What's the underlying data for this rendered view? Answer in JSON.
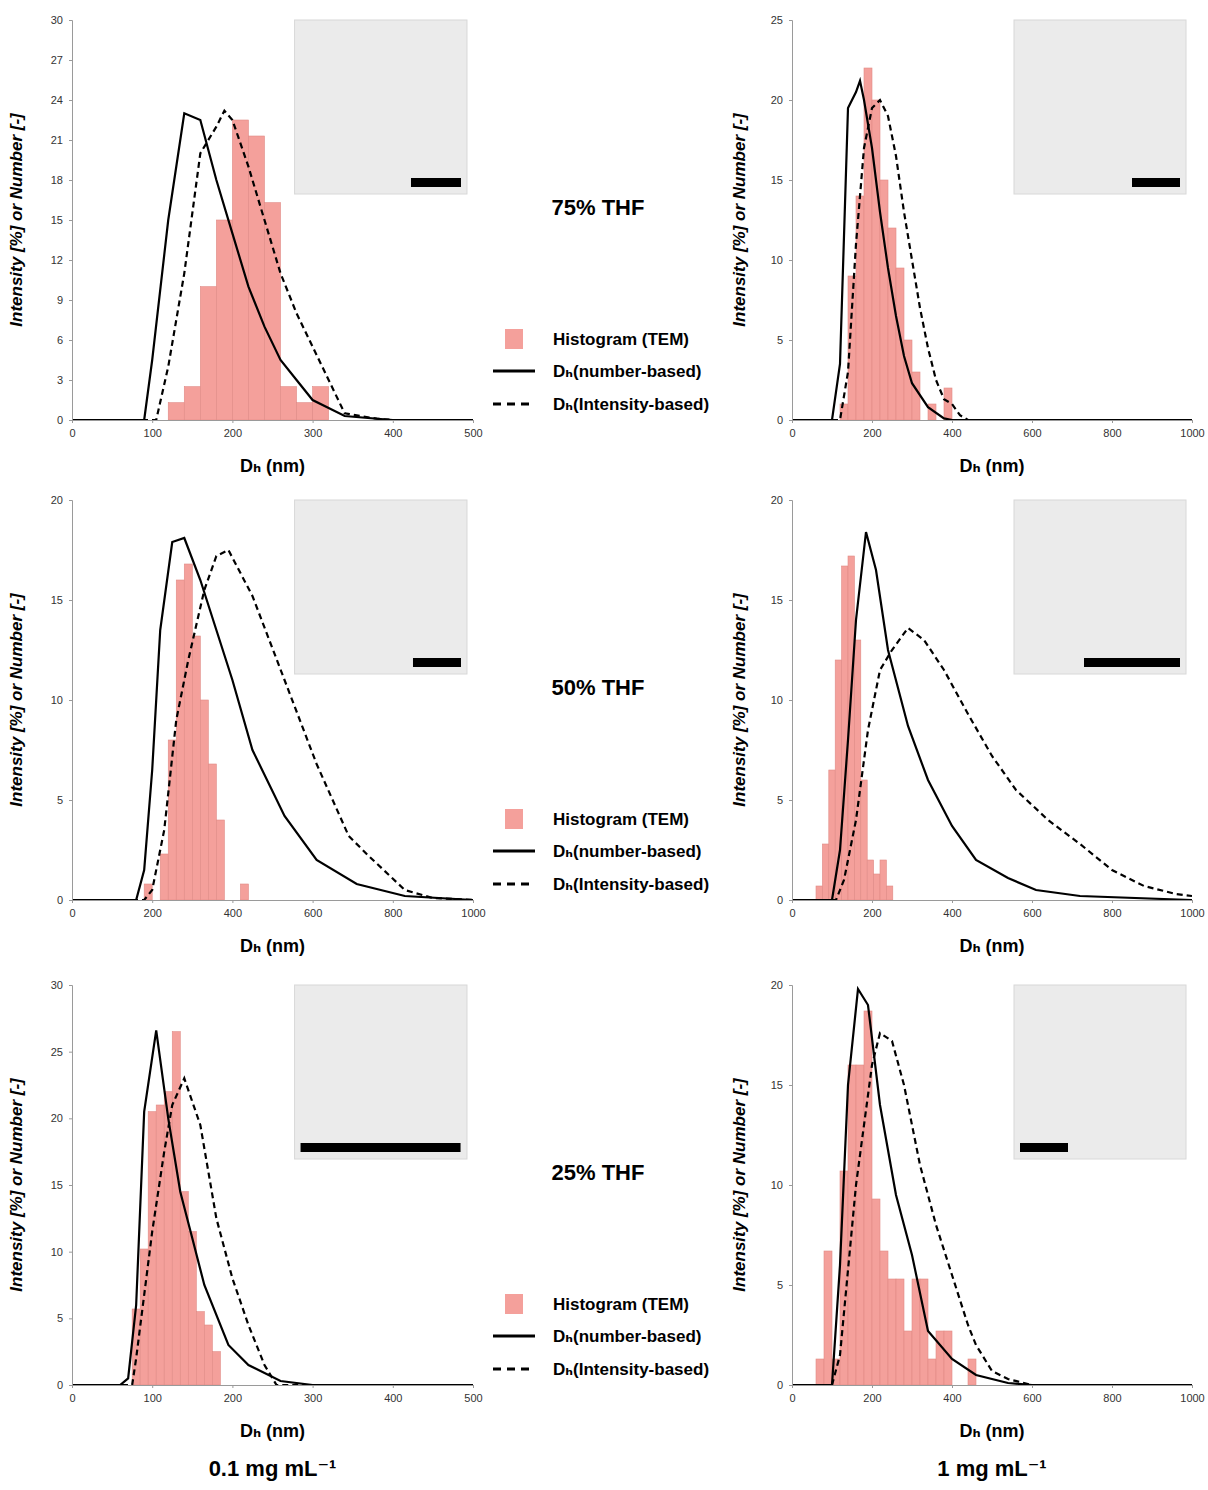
{
  "chart_data": [
    {
      "type": "histogram",
      "x_label": "Dₕ (nm)",
      "y_label": "Intensity [%] or Number [-]",
      "xlim": [
        0,
        500
      ],
      "xticks": [
        0,
        100,
        200,
        300,
        400,
        500
      ],
      "ylim": [
        0,
        30
      ],
      "yticks": [
        0,
        3,
        6,
        9,
        12,
        15,
        18,
        21,
        24,
        27,
        30
      ],
      "legend": "right",
      "series": [
        {
          "name": "Histogram (TEM)",
          "type": "histogram",
          "color": "#f4a09b",
          "bins": [
            120,
            140,
            160,
            180,
            200,
            220,
            240,
            260,
            280,
            300,
            320
          ],
          "values": [
            1.3,
            2.5,
            10,
            15,
            22.5,
            21.3,
            16.3,
            2.5,
            1.3,
            2.5
          ]
        },
        {
          "name": "Dₕ(number-based)",
          "type": "line",
          "line_style": "solid",
          "color": "#000000",
          "x": [
            0,
            90,
            100,
            120,
            140,
            160,
            180,
            200,
            220,
            240,
            260,
            280,
            300,
            340,
            400,
            500
          ],
          "values": [
            0,
            0,
            4.5,
            15,
            23,
            22.5,
            18,
            14,
            10,
            7,
            4.5,
            3,
            1.5,
            0.3,
            0,
            0
          ]
        },
        {
          "name": "Dₕ(Intensity-based)",
          "type": "line",
          "line_style": "dashed",
          "color": "#000000",
          "x": [
            0,
            105,
            120,
            140,
            160,
            180,
            190,
            200,
            220,
            240,
            260,
            280,
            300,
            320,
            340,
            380,
            400,
            500
          ],
          "values": [
            0,
            0,
            4,
            11,
            20,
            22,
            23.2,
            22.5,
            19,
            15,
            11,
            8,
            5.5,
            3,
            0.5,
            0.1,
            0,
            0
          ]
        }
      ]
    },
    {
      "type": "histogram",
      "x_label": "Dₕ (nm)",
      "y_label": "Intensity [%] or Number [-]",
      "xlim": [
        0,
        1000
      ],
      "xticks": [
        0,
        200,
        400,
        600,
        800,
        1000
      ],
      "ylim": [
        0,
        25
      ],
      "yticks": [
        0,
        5,
        10,
        15,
        20,
        25
      ],
      "series": [
        {
          "type": "histogram",
          "color": "#f4a09b",
          "bins": [
            120,
            140,
            160,
            180,
            200,
            220,
            240,
            260,
            280,
            300,
            320,
            340,
            360,
            380,
            400
          ],
          "values": [
            1,
            9,
            14,
            22,
            20,
            15,
            12,
            9.5,
            5,
            3,
            0,
            1,
            0,
            2
          ]
        },
        {
          "type": "line",
          "line_style": "solid",
          "color": "#000000",
          "x": [
            0,
            100,
            120,
            140,
            160,
            170,
            180,
            200,
            220,
            240,
            260,
            280,
            300,
            340,
            380,
            400,
            1000
          ],
          "values": [
            0,
            0,
            3.5,
            19.5,
            20.5,
            21.2,
            20,
            17,
            13,
            9.5,
            6.5,
            4,
            2.3,
            0.8,
            0.1,
            0,
            0
          ]
        },
        {
          "type": "line",
          "line_style": "dashed",
          "color": "#000000",
          "x": [
            0,
            120,
            140,
            160,
            180,
            200,
            220,
            240,
            260,
            280,
            300,
            320,
            340,
            360,
            380,
            400,
            420,
            440,
            1000
          ],
          "values": [
            0,
            0,
            3,
            11,
            17,
            19.5,
            20,
            19,
            16.5,
            13,
            10,
            7,
            4.5,
            2.5,
            1.3,
            1,
            0.3,
            0,
            0
          ]
        }
      ]
    },
    {
      "type": "histogram",
      "x_label": "Dₕ (nm)",
      "y_label": "Intensity [%] or Number [-]",
      "xlim": [
        0,
        1000
      ],
      "xticks": [
        0,
        200,
        400,
        600,
        800,
        1000
      ],
      "ylim": [
        0,
        20
      ],
      "yticks": [
        0,
        5,
        10,
        15,
        20
      ],
      "legend": "right",
      "series": [
        {
          "name": "Histogram (TEM)",
          "type": "histogram",
          "color": "#f4a09b",
          "bins": [
            180,
            200,
            220,
            240,
            260,
            280,
            300,
            320,
            340,
            360,
            380,
            400,
            420,
            440
          ],
          "values": [
            0.8,
            0,
            2.3,
            8,
            16,
            16.8,
            13.2,
            10,
            6.8,
            4,
            0,
            0,
            0.8
          ]
        },
        {
          "name": "Dₕ(number-based)",
          "type": "line",
          "line_style": "solid",
          "color": "#000000",
          "x": [
            0,
            160,
            180,
            200,
            220,
            250,
            280,
            320,
            360,
            400,
            450,
            530,
            610,
            710,
            830,
            1000
          ],
          "values": [
            0,
            0,
            1.5,
            6.5,
            13.5,
            17.9,
            18.1,
            16,
            13.5,
            11,
            7.5,
            4.2,
            2,
            0.8,
            0.2,
            0
          ]
        },
        {
          "name": "Dₕ(Intensity-based)",
          "type": "line",
          "line_style": "dashed",
          "color": "#000000",
          "x": [
            0,
            180,
            200,
            230,
            260,
            290,
            330,
            360,
            390,
            450,
            530,
            610,
            690,
            740,
            830,
            900,
            1000
          ],
          "values": [
            0,
            0,
            0.5,
            3.5,
            9,
            12,
            15.5,
            17.2,
            17.5,
            15.2,
            11,
            6.8,
            3.2,
            2.2,
            0.5,
            0.1,
            0
          ]
        }
      ]
    },
    {
      "type": "histogram",
      "x_label": "Dₕ (nm)",
      "y_label": "Intensity [%] or Number [-]",
      "xlim": [
        0,
        1000
      ],
      "xticks": [
        0,
        200,
        400,
        600,
        800,
        1000
      ],
      "ylim": [
        0,
        20
      ],
      "yticks": [
        0,
        5,
        10,
        15,
        20
      ],
      "series": [
        {
          "type": "histogram",
          "color": "#f4a09b",
          "bins": [
            60,
            76,
            92,
            108,
            124,
            140,
            156,
            172,
            188,
            204,
            220,
            236,
            252
          ],
          "values": [
            0.7,
            2.8,
            6.5,
            12,
            16.7,
            17.2,
            13,
            6,
            2,
            1.3,
            2,
            0.7
          ]
        },
        {
          "type": "line",
          "line_style": "solid",
          "color": "#000000",
          "x": [
            0,
            100,
            120,
            140,
            160,
            185,
            210,
            240,
            290,
            340,
            400,
            460,
            540,
            610,
            720,
            1000
          ],
          "values": [
            0,
            0,
            2.5,
            8,
            14,
            18.4,
            16.5,
            12.5,
            8.7,
            6,
            3.7,
            2,
            1.1,
            0.5,
            0.2,
            0
          ]
        },
        {
          "type": "line",
          "line_style": "dashed",
          "color": "#000000",
          "x": [
            0,
            110,
            130,
            160,
            190,
            220,
            250,
            290,
            330,
            380,
            440,
            500,
            560,
            640,
            720,
            800,
            880,
            960,
            1000
          ],
          "values": [
            0,
            0,
            1,
            4,
            8.5,
            11.5,
            12.5,
            13.6,
            13,
            11.5,
            9.3,
            7.2,
            5.5,
            4,
            2.8,
            1.5,
            0.7,
            0.3,
            0.2
          ]
        }
      ]
    },
    {
      "type": "histogram",
      "x_label": "Dₕ (nm)",
      "y_label": "Intensity [%] or Number [-]",
      "xlim": [
        0,
        500
      ],
      "xticks": [
        0,
        100,
        200,
        300,
        400,
        500
      ],
      "ylim": [
        0,
        30
      ],
      "yticks": [
        0,
        5,
        10,
        15,
        20,
        25,
        30
      ],
      "legend": "right",
      "series": [
        {
          "name": "Histogram (TEM)",
          "type": "histogram",
          "color": "#f4a09b",
          "bins": [
            75,
            85,
            95,
            105,
            115,
            125,
            135,
            145,
            155,
            165,
            175,
            185
          ],
          "values": [
            5.7,
            10.2,
            20.5,
            21,
            22,
            26.5,
            14.5,
            11.5,
            5.5,
            4.5,
            2.5
          ]
        },
        {
          "name": "Dₕ(number-based)",
          "type": "line",
          "line_style": "solid",
          "color": "#000000",
          "x": [
            0,
            60,
            70,
            80,
            90,
            105,
            120,
            135,
            150,
            165,
            195,
            220,
            260,
            300,
            500
          ],
          "values": [
            0,
            0,
            0.5,
            6,
            20.5,
            26.6,
            20,
            14.5,
            11,
            7.5,
            3,
            1.5,
            0.3,
            0,
            0
          ]
        },
        {
          "name": "Dₕ(Intensity-based)",
          "type": "line",
          "line_style": "dashed",
          "color": "#000000",
          "x": [
            0,
            75,
            80,
            100,
            115,
            125,
            140,
            160,
            180,
            200,
            220,
            240,
            255,
            500
          ],
          "values": [
            0,
            0,
            2,
            11.5,
            17.5,
            21,
            23,
            19.5,
            12.5,
            8,
            4.5,
            1.5,
            0,
            0
          ]
        }
      ]
    },
    {
      "type": "histogram",
      "x_label": "Dₕ (nm)",
      "y_label": "Intensity [%] or Number [-]",
      "xlim": [
        0,
        1000
      ],
      "xticks": [
        0,
        200,
        400,
        600,
        800,
        1000
      ],
      "ylim": [
        0,
        20
      ],
      "yticks": [
        0,
        5,
        10,
        15,
        20
      ],
      "series": [
        {
          "type": "histogram",
          "color": "#f4a09b",
          "bins": [
            60,
            80,
            100,
            120,
            140,
            160,
            180,
            200,
            220,
            240,
            260,
            280,
            300,
            320,
            340,
            360,
            380,
            400,
            420,
            440,
            460
          ],
          "values": [
            1.3,
            6.7,
            1.3,
            10.7,
            16,
            16,
            18.7,
            9.3,
            6.7,
            5.3,
            5.3,
            2.7,
            5.3,
            5.3,
            1.3,
            2.7,
            2.7,
            0,
            0,
            1.3
          ]
        },
        {
          "type": "line",
          "line_style": "solid",
          "color": "#000000",
          "x": [
            0,
            100,
            120,
            140,
            165,
            190,
            220,
            260,
            300,
            340,
            400,
            460,
            540,
            600,
            1000
          ],
          "values": [
            0,
            0,
            6,
            15,
            19.8,
            19,
            14,
            9.5,
            6.5,
            2.7,
            1.3,
            0.5,
            0.1,
            0,
            0
          ]
        },
        {
          "type": "line",
          "line_style": "dashed",
          "color": "#000000",
          "x": [
            0,
            100,
            120,
            160,
            200,
            220,
            250,
            280,
            320,
            360,
            400,
            440,
            460,
            500,
            540,
            600,
            1000
          ],
          "values": [
            0,
            0,
            1.5,
            10,
            16,
            17.6,
            17.2,
            15,
            11,
            8,
            5.5,
            3,
            2,
            0.7,
            0.3,
            0,
            0
          ]
        }
      ]
    }
  ],
  "row_labels": [
    "75% THF",
    "50% THF",
    "25% THF"
  ],
  "column_labels": [
    "0.1 mg mL⁻¹",
    "1 mg mL⁻¹"
  ]
}
